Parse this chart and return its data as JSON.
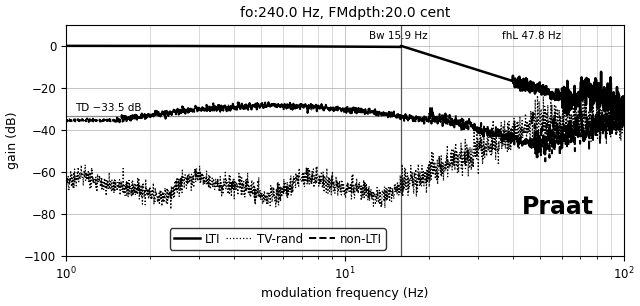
{
  "title": "fo:240.0 Hz, FMdpth:20.0 cent",
  "xlabel": "modulation frequency (Hz)",
  "ylabel": "gain (dB)",
  "xlim": [
    1,
    100
  ],
  "ylim": [
    -100,
    10
  ],
  "yticks": [
    0,
    -20,
    -40,
    -60,
    -80,
    -100
  ],
  "bw_freq": 15.9,
  "fhL_freq": 47.8,
  "td_level": -33.5,
  "bw_label": "Bw 15.9 Hz",
  "fhL_label": "fhL 47.8 Hz",
  "td_label": "TD −33.5 dB",
  "praat_label": "Praat",
  "legend_entries": [
    "LTI",
    "TV-rand",
    "non-LTI"
  ],
  "background_color": "#ffffff",
  "grid_color": "#bbbbbb",
  "line_color": "#000000",
  "hline_color": "#888888",
  "vline_color": "#555555"
}
